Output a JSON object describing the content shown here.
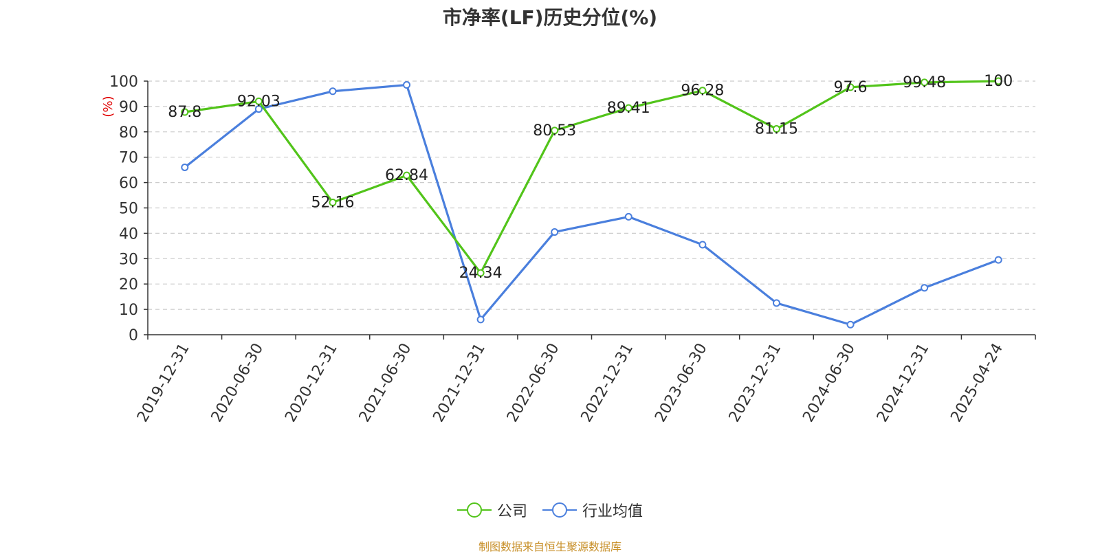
{
  "chart_data": {
    "type": "line",
    "title": "市净率(LF)历史分位(%)",
    "ylabel": "(%)",
    "xlabel": "",
    "ylim": [
      0,
      100
    ],
    "yticks": [
      0,
      10,
      20,
      30,
      40,
      50,
      60,
      70,
      80,
      90,
      100
    ],
    "grid": true,
    "legend_position": "bottom",
    "categories": [
      "2019-12-31",
      "2020-06-30",
      "2020-12-31",
      "2021-06-30",
      "2021-12-31",
      "2022-06-30",
      "2022-12-31",
      "2023-06-30",
      "2023-12-31",
      "2024-06-30",
      "2024-12-31",
      "2025-04-24"
    ],
    "series": [
      {
        "name": "公司",
        "color": "#52c41a",
        "values": [
          87.8,
          92.03,
          52.16,
          62.84,
          24.34,
          80.53,
          89.41,
          96.28,
          81.15,
          97.6,
          99.48,
          100
        ],
        "labels": [
          "87.8",
          "92.03",
          "52.16",
          "62.84",
          "24.34",
          "80.53",
          "89.41",
          "96.28",
          "81.15",
          "97.6",
          "99.48",
          "100"
        ],
        "show_labels": true
      },
      {
        "name": "行业均值",
        "color": "#4a7fdd",
        "values": [
          66,
          89,
          96,
          98.5,
          6,
          40.5,
          46.5,
          35.5,
          12.5,
          4,
          18.5,
          29.5
        ],
        "show_labels": false
      }
    ]
  },
  "source_note": "制图数据来自恒生聚源数据库"
}
